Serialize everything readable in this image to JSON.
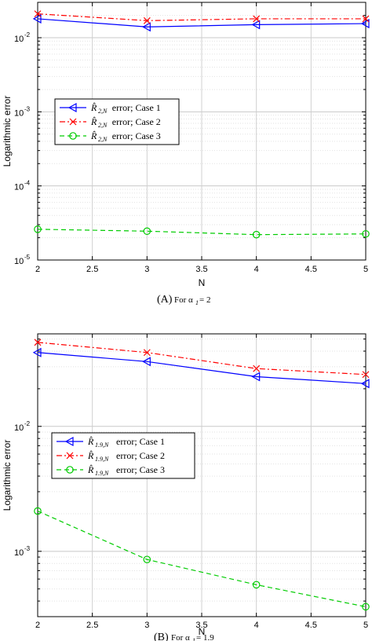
{
  "chart_data": [
    {
      "type": "line",
      "xlabel": "N",
      "ylabel": "Logarithmic error",
      "xlim": [
        2,
        5
      ],
      "ylim": [
        1e-05,
        0.03
      ],
      "yscale": "log",
      "grid": true,
      "legend_position": "center-left",
      "x": [
        2,
        3,
        4,
        5
      ],
      "xticks": [
        "2",
        "2.5",
        "3",
        "3.5",
        "4",
        "4.5",
        "5"
      ],
      "yticks": [
        {
          "base": "10",
          "exp": "-2",
          "value": 0.01
        },
        {
          "base": "10",
          "exp": "-3",
          "value": 0.001
        },
        {
          "base": "10",
          "exp": "-4",
          "value": 0.0001
        },
        {
          "base": "10",
          "exp": "-5",
          "value": 1e-05
        }
      ],
      "series": [
        {
          "name": "error; Case 1",
          "sym": "R̂",
          "sub": "2,N",
          "color": "#0000ff",
          "dash": "",
          "marker": "triangle-left",
          "values": [
            0.018,
            0.014,
            0.015,
            0.0155
          ]
        },
        {
          "name": "error; Case 2",
          "sym": "R̂",
          "sub": "2,N",
          "color": "#ff0000",
          "dash": "7 3 2 3",
          "marker": "x",
          "values": [
            0.021,
            0.017,
            0.018,
            0.018
          ]
        },
        {
          "name": "error; Case 3",
          "sym": "R̂",
          "sub": "2,N",
          "color": "#00cc00",
          "dash": "6 4",
          "marker": "circle",
          "values": [
            2.6e-05,
            2.45e-05,
            2.2e-05,
            2.25e-05
          ]
        }
      ],
      "caption": {
        "label": "(A)",
        "text": "For α",
        "sub": "1",
        "eq": " = 2"
      }
    },
    {
      "type": "line",
      "xlabel": "N",
      "ylabel": "Logarithmic error",
      "xlim": [
        2,
        5
      ],
      "ylim": [
        0.0003,
        0.055
      ],
      "yscale": "log",
      "grid": true,
      "legend_position": "center-left",
      "x": [
        2,
        3,
        4,
        5
      ],
      "xticks": [
        "2",
        "2.5",
        "3",
        "3.5",
        "4",
        "4.5",
        "5"
      ],
      "yticks": [
        {
          "base": "10",
          "exp": "-2",
          "value": 0.01
        },
        {
          "base": "10",
          "exp": "-3",
          "value": 0.001
        }
      ],
      "series": [
        {
          "name": "error; Case 1",
          "sym": "R̂",
          "sub": "1.9,N",
          "color": "#0000ff",
          "dash": "",
          "marker": "triangle-left",
          "values": [
            0.039,
            0.033,
            0.025,
            0.022
          ]
        },
        {
          "name": "error; Case 2",
          "sym": "R̂",
          "sub": "1.9,N",
          "color": "#ff0000",
          "dash": "7 3 2 3",
          "marker": "x",
          "values": [
            0.047,
            0.039,
            0.029,
            0.026
          ]
        },
        {
          "name": "error; Case 3",
          "sym": "R̂",
          "sub": "1.9,N",
          "color": "#00cc00",
          "dash": "6 4",
          "marker": "circle",
          "values": [
            0.0021,
            0.00086,
            0.00054,
            0.00036
          ]
        }
      ],
      "caption": {
        "label": "(B)",
        "text": "For α",
        "sub": "1",
        "eq": " = 1.9"
      }
    }
  ]
}
